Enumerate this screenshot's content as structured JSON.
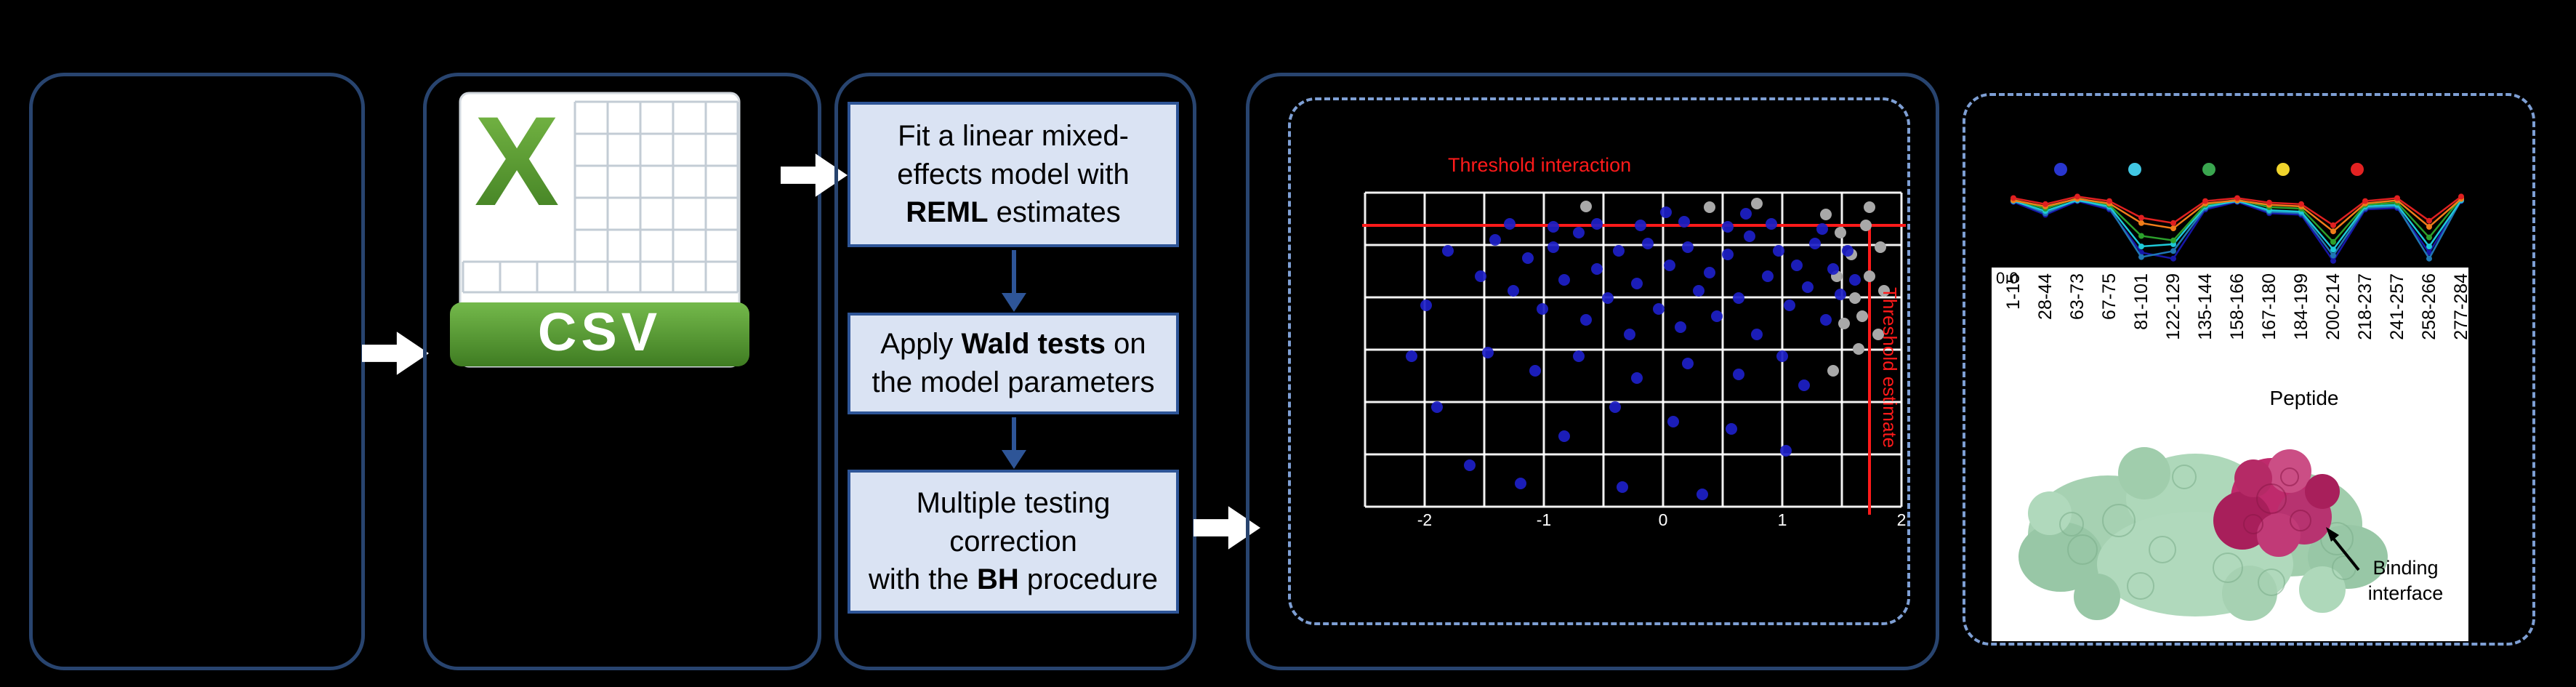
{
  "csv": {
    "banner": "CSV",
    "letter": "X"
  },
  "flowchart": {
    "box1": {
      "line1": "Fit a linear mixed-",
      "line2": "effects model with",
      "bold3": "REML",
      "rest3": " estimates"
    },
    "box2": {
      "pre1": "Apply ",
      "bold1": "Wald tests",
      "post1": " on",
      "line2": "the model parameters"
    },
    "box3": {
      "line1": "Multiple testing",
      "line2": "correction",
      "pre3": "with the ",
      "bold3": "BH",
      "post3": " procedure"
    }
  },
  "scatter_plot": {
    "top_label": "Threshold interaction",
    "right_label": "Threshold estimate",
    "x_tick_labels": [
      "-2",
      "-1",
      "0",
      "1",
      "2"
    ],
    "threshold_color": "#ff1a1a",
    "point_color_significant": "#1d1fc8",
    "point_color_nonsignificant": "#a8a8a8",
    "hline_y": 60,
    "vline_x": 700,
    "blue_points": [
      [
        120,
        95
      ],
      [
        165,
        130
      ],
      [
        185,
        80
      ],
      [
        210,
        150
      ],
      [
        230,
        105
      ],
      [
        250,
        175
      ],
      [
        265,
        90
      ],
      [
        280,
        135
      ],
      [
        300,
        70
      ],
      [
        310,
        190
      ],
      [
        325,
        120
      ],
      [
        340,
        160
      ],
      [
        355,
        95
      ],
      [
        370,
        210
      ],
      [
        380,
        140
      ],
      [
        395,
        85
      ],
      [
        410,
        175
      ],
      [
        425,
        115
      ],
      [
        440,
        200
      ],
      [
        450,
        90
      ],
      [
        465,
        150
      ],
      [
        480,
        125
      ],
      [
        490,
        185
      ],
      [
        505,
        100
      ],
      [
        520,
        160
      ],
      [
        535,
        75
      ],
      [
        545,
        210
      ],
      [
        560,
        130
      ],
      [
        575,
        95
      ],
      [
        590,
        170
      ],
      [
        600,
        115
      ],
      [
        615,
        145
      ],
      [
        625,
        85
      ],
      [
        640,
        190
      ],
      [
        650,
        120
      ],
      [
        660,
        155
      ],
      [
        670,
        95
      ],
      [
        680,
        135
      ],
      [
        635,
        65
      ],
      [
        565,
        58
      ],
      [
        505,
        62
      ],
      [
        445,
        55
      ],
      [
        385,
        60
      ],
      [
        325,
        58
      ],
      [
        265,
        62
      ],
      [
        205,
        58
      ],
      [
        450,
        250
      ],
      [
        380,
        270
      ],
      [
        300,
        240
      ],
      [
        520,
        265
      ],
      [
        580,
        240
      ],
      [
        240,
        260
      ],
      [
        175,
        235
      ],
      [
        610,
        280
      ],
      [
        350,
        310
      ],
      [
        430,
        330
      ],
      [
        280,
        350
      ],
      [
        510,
        340
      ],
      [
        150,
        390
      ],
      [
        360,
        420
      ],
      [
        470,
        430
      ],
      [
        220,
        415
      ],
      [
        90,
        170
      ],
      [
        70,
        240
      ],
      [
        105,
        310
      ],
      [
        585,
        370
      ],
      [
        420,
        42
      ],
      [
        530,
        44
      ]
    ],
    "gray_points": [
      [
        640,
        45
      ],
      [
        660,
        70
      ],
      [
        675,
        100
      ],
      [
        655,
        130
      ],
      [
        680,
        160
      ],
      [
        665,
        195
      ],
      [
        685,
        230
      ],
      [
        650,
        260
      ],
      [
        695,
        60
      ],
      [
        700,
        130
      ],
      [
        690,
        185
      ],
      [
        700,
        35
      ],
      [
        715,
        90
      ],
      [
        720,
        150
      ],
      [
        712,
        210
      ],
      [
        480,
        35
      ],
      [
        545,
        30
      ],
      [
        310,
        34
      ]
    ]
  },
  "epitope_plot": {
    "legend_dot_colors": [
      "#2936cf",
      "#41c7e3",
      "#3aa64f",
      "#f0d42c",
      "#e32222"
    ],
    "y_tick": "0.0",
    "x_label": "Peptide",
    "peptides": [
      "1-15",
      "28-44",
      "63-73",
      "67-75",
      "81-101",
      "122-129",
      "135-144",
      "158-166",
      "167-180",
      "184-199",
      "200-214",
      "218-237",
      "241-257",
      "258-266",
      "277-284"
    ],
    "series": [
      {
        "color": "#1717a8",
        "values": [
          0.83,
          0.66,
          0.84,
          0.73,
          0.16,
          0.08,
          0.73,
          0.83,
          0.68,
          0.66,
          0.05,
          0.73,
          0.75,
          0.16,
          0.84
        ]
      },
      {
        "color": "#1f77b4",
        "values": [
          0.85,
          0.68,
          0.86,
          0.75,
          0.1,
          0.18,
          0.75,
          0.85,
          0.7,
          0.68,
          0.12,
          0.75,
          0.77,
          0.08,
          0.86
        ]
      },
      {
        "color": "#1ec9d8",
        "values": [
          0.84,
          0.71,
          0.85,
          0.77,
          0.24,
          0.27,
          0.77,
          0.84,
          0.72,
          0.7,
          0.2,
          0.77,
          0.79,
          0.24,
          0.85
        ]
      },
      {
        "color": "#2ca02c",
        "values": [
          0.86,
          0.74,
          0.88,
          0.79,
          0.38,
          0.32,
          0.79,
          0.86,
          0.76,
          0.74,
          0.3,
          0.79,
          0.82,
          0.36,
          0.88
        ]
      },
      {
        "color": "#f07d1a",
        "values": [
          0.85,
          0.77,
          0.87,
          0.81,
          0.55,
          0.48,
          0.81,
          0.85,
          0.79,
          0.77,
          0.44,
          0.81,
          0.85,
          0.5,
          0.87
        ]
      },
      {
        "color": "#e02020",
        "values": [
          0.88,
          0.8,
          0.9,
          0.84,
          0.62,
          0.55,
          0.84,
          0.88,
          0.82,
          0.8,
          0.52,
          0.84,
          0.88,
          0.58,
          0.9
        ]
      }
    ],
    "annotation": {
      "line1": "Binding",
      "line2": "interface"
    }
  }
}
